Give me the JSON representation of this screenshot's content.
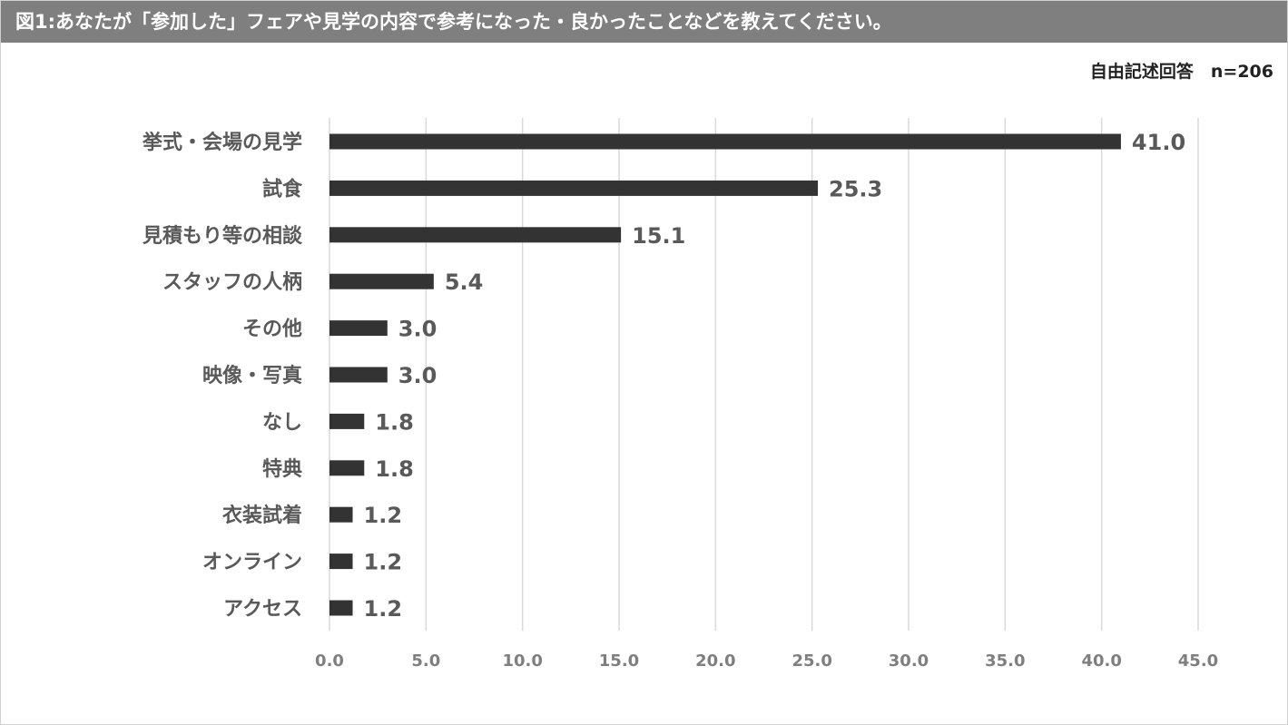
{
  "title": "図1:あなたが「参加した」フェアや見学の内容で参考になった・良かったことなどを教えてください。",
  "note": "自由記述回答　n=206",
  "chart_data": {
    "type": "bar",
    "orientation": "horizontal",
    "title": "図1:あなたが「参加した」フェアや見学の内容で参考になった・良かったことなどを教えてください。",
    "subtitle": "自由記述回答　n=206",
    "categories": [
      "挙式・会場の見学",
      "試食",
      "見積もり等の相談",
      "スタッフの人柄",
      "その他",
      "映像・写真",
      "なし",
      "特典",
      "衣装試着",
      "オンライン",
      "アクセス"
    ],
    "values": [
      41.0,
      25.3,
      15.1,
      5.4,
      3.0,
      3.0,
      1.8,
      1.8,
      1.2,
      1.2,
      1.2
    ],
    "data_labels": [
      "41.0",
      "25.3",
      "15.1",
      "5.4",
      "3.0",
      "3.0",
      "1.8",
      "1.8",
      "1.2",
      "1.2",
      "1.2"
    ],
    "xlim": [
      0,
      45
    ],
    "xticks": [
      "0.0",
      "5.0",
      "10.0",
      "15.0",
      "20.0",
      "25.0",
      "30.0",
      "35.0",
      "40.0",
      "45.0"
    ],
    "xtick_values": [
      0,
      5,
      10,
      15,
      20,
      25,
      30,
      35,
      40,
      45
    ],
    "grid": true,
    "legend": "none",
    "bar_color": "#333333",
    "grid_color": "#d9d9d9"
  }
}
